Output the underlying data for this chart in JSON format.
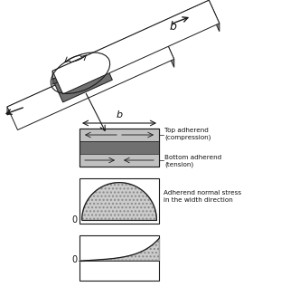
{
  "fig_width": 3.21,
  "fig_height": 3.27,
  "dpi": 100,
  "bg_color": "#ffffff",
  "light_gray": "#c0c0c0",
  "mid_gray": "#909090",
  "dark_gray": "#606060",
  "adh_gray": "#707070",
  "box_line_color": "#1a1a1a",
  "text_color": "#111111",
  "top_adherend_label": "Top adherend\n(compression)",
  "bottom_adherend_label": "Bottom adherend\n(tension)",
  "normal_stress_label": "Adherend normal stress\nin the width direction"
}
